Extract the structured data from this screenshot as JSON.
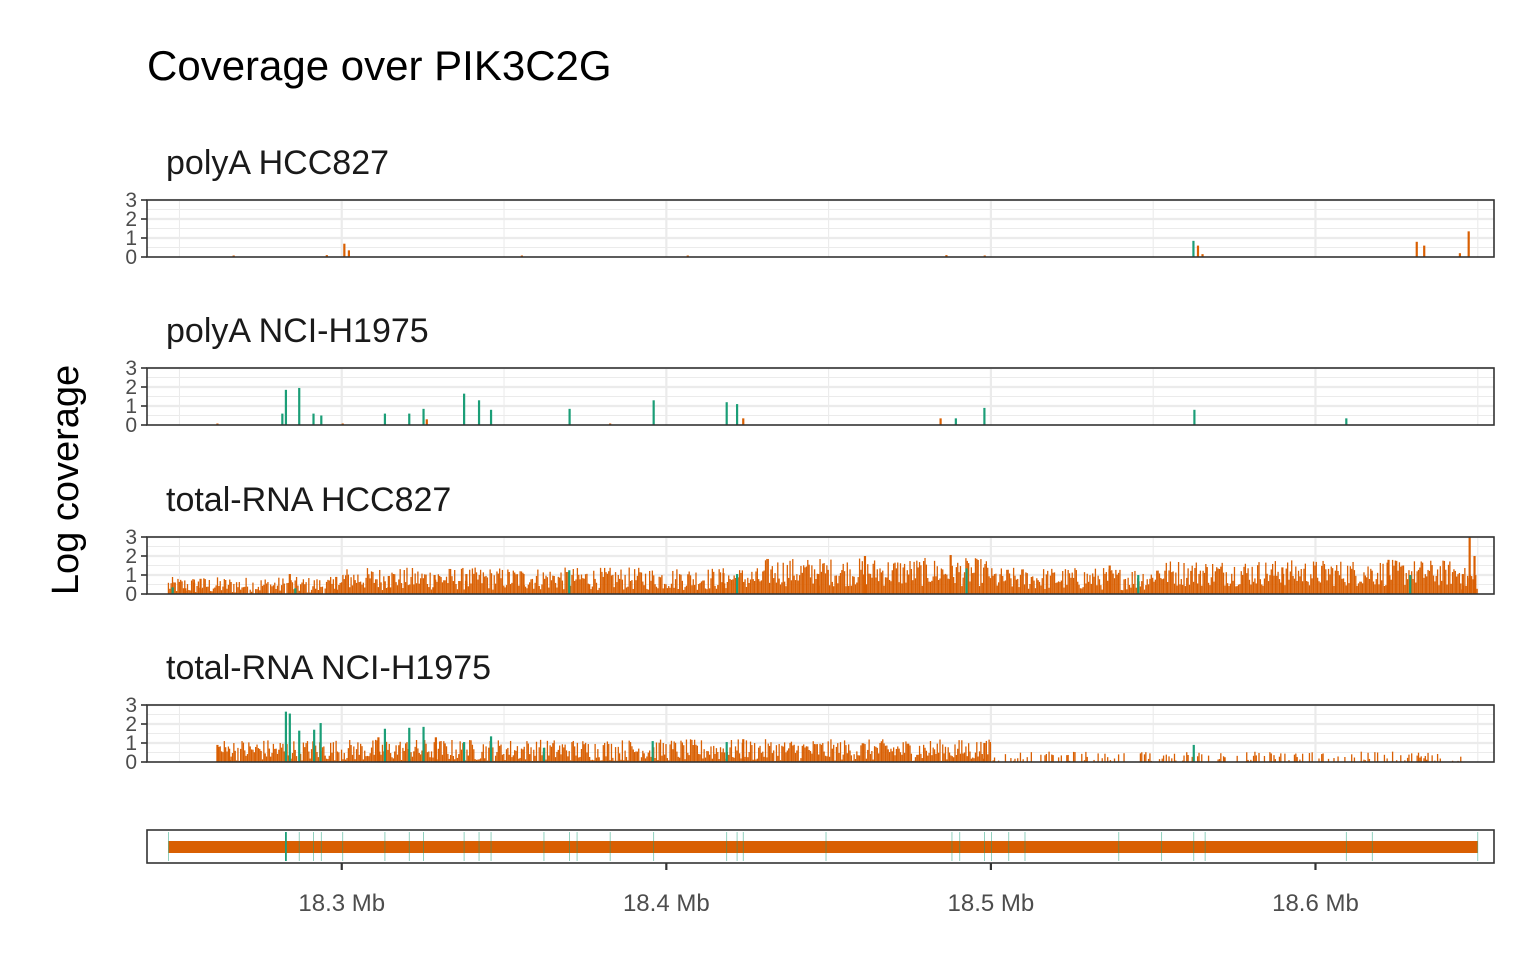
{
  "colors": {
    "exon": "#1b9e77",
    "intron": "#d95f02",
    "grid": "#ebebeb",
    "border": "#333333"
  },
  "chart_data": {
    "type": "bar",
    "title": "Coverage over PIK3C2G",
    "ylabel": "Log coverage",
    "xlabel": "",
    "xlim": [
      18.24,
      18.655
    ],
    "x_unit": "Mb",
    "x_ticks": [
      {
        "value": 18.3,
        "label": "18.3 Mb"
      },
      {
        "value": 18.4,
        "label": "18.4 Mb"
      },
      {
        "value": 18.5,
        "label": "18.5 Mb"
      },
      {
        "value": 18.6,
        "label": "18.6 Mb"
      }
    ],
    "ylim": [
      0,
      3
    ],
    "y_ticks": [
      "0",
      "1",
      "2",
      "3"
    ],
    "grid": true,
    "legend": "none",
    "panels": [
      {
        "label": "polyA HCC827",
        "bars": [
          [
            18.2667,
            0.08,
            "intron"
          ],
          [
            18.2954,
            0.1,
            "intron"
          ],
          [
            18.3008,
            0.7,
            "intron"
          ],
          [
            18.3022,
            0.35,
            "intron"
          ],
          [
            18.3555,
            0.08,
            "intron"
          ],
          [
            18.4066,
            0.08,
            "intron"
          ],
          [
            18.4863,
            0.1,
            "intron"
          ],
          [
            18.4981,
            0.08,
            "intron"
          ],
          [
            18.5624,
            0.85,
            "exon"
          ],
          [
            18.5638,
            0.6,
            "intron"
          ],
          [
            18.5652,
            0.15,
            "intron"
          ],
          [
            18.6312,
            0.8,
            "intron"
          ],
          [
            18.6335,
            0.6,
            "intron"
          ],
          [
            18.6445,
            0.2,
            "intron"
          ],
          [
            18.6472,
            1.35,
            "intron"
          ]
        ]
      },
      {
        "label": "polyA NCI-H1975",
        "bars": [
          [
            18.2617,
            0.08,
            "intron"
          ],
          [
            18.2817,
            0.6,
            "exon"
          ],
          [
            18.2828,
            1.85,
            "exon"
          ],
          [
            18.2869,
            1.95,
            "exon"
          ],
          [
            18.2913,
            0.6,
            "exon"
          ],
          [
            18.2937,
            0.5,
            "exon"
          ],
          [
            18.3003,
            0.08,
            "intron"
          ],
          [
            18.3133,
            0.6,
            "exon"
          ],
          [
            18.3208,
            0.6,
            "exon"
          ],
          [
            18.3252,
            0.85,
            "exon"
          ],
          [
            18.3262,
            0.3,
            "intron"
          ],
          [
            18.3377,
            1.65,
            "exon"
          ],
          [
            18.3423,
            1.3,
            "exon"
          ],
          [
            18.346,
            0.8,
            "exon"
          ],
          [
            18.3702,
            0.85,
            "exon"
          ],
          [
            18.3827,
            0.08,
            "intron"
          ],
          [
            18.3961,
            1.3,
            "exon"
          ],
          [
            18.4186,
            1.2,
            "exon"
          ],
          [
            18.4218,
            1.1,
            "exon"
          ],
          [
            18.4237,
            0.35,
            "intron"
          ],
          [
            18.4845,
            0.35,
            "intron"
          ],
          [
            18.4892,
            0.35,
            "exon"
          ],
          [
            18.498,
            0.9,
            "exon"
          ],
          [
            18.5627,
            0.8,
            "exon"
          ],
          [
            18.6095,
            0.35,
            "exon"
          ]
        ]
      },
      {
        "label": "total-RNA HCC827",
        "bars": [
          [
            18.2479,
            0.35,
            "exon"
          ],
          [
            18.2518,
            0.3,
            "intron"
          ],
          [
            18.2545,
            0.6,
            "intron"
          ],
          [
            18.2565,
            0.8,
            "intron"
          ],
          [
            18.284,
            1.05,
            "intron"
          ],
          [
            18.2857,
            0.3,
            "exon"
          ],
          [
            18.2983,
            0.9,
            "intron"
          ],
          [
            18.3145,
            0.95,
            "intron"
          ],
          [
            18.3286,
            1.0,
            "intron"
          ],
          [
            18.3384,
            1.05,
            "intron"
          ],
          [
            18.356,
            1.05,
            "intron"
          ],
          [
            18.3701,
            1.25,
            "exon"
          ],
          [
            18.4176,
            1.1,
            "intron"
          ],
          [
            18.4218,
            1.05,
            "exon"
          ],
          [
            18.4468,
            1.05,
            "intron"
          ],
          [
            18.4612,
            2.0,
            "intron"
          ],
          [
            18.4876,
            2.05,
            "intron"
          ],
          [
            18.4925,
            1.35,
            "exon"
          ],
          [
            18.5366,
            1.5,
            "intron"
          ],
          [
            18.5454,
            1.0,
            "exon"
          ],
          [
            18.5898,
            1.4,
            "intron"
          ],
          [
            18.6225,
            1.8,
            "intron"
          ],
          [
            18.6292,
            1.0,
            "exon"
          ],
          [
            18.6454,
            1.05,
            "intron"
          ],
          [
            18.6475,
            3.0,
            "intron"
          ],
          [
            18.649,
            2.0,
            "intron"
          ]
        ],
        "background_pattern": "dense intronic coverage 0.3–1.6 across the whole gene, higher (1.0–1.9) between 18.43–18.50 Mb and 18.55–18.64 Mb"
      },
      {
        "label": "total-RNA NCI-H1975",
        "bars": [
          [
            18.2617,
            0.9,
            "intron"
          ],
          [
            18.2653,
            0.7,
            "intron"
          ],
          [
            18.2828,
            2.65,
            "exon"
          ],
          [
            18.284,
            2.55,
            "exon"
          ],
          [
            18.2869,
            1.65,
            "exon"
          ],
          [
            18.2915,
            1.7,
            "exon"
          ],
          [
            18.2935,
            2.05,
            "exon"
          ],
          [
            18.3113,
            1.3,
            "intron"
          ],
          [
            18.3133,
            1.75,
            "exon"
          ],
          [
            18.3208,
            1.8,
            "exon"
          ],
          [
            18.3252,
            1.85,
            "exon"
          ],
          [
            18.329,
            1.3,
            "intron"
          ],
          [
            18.3377,
            1.05,
            "exon"
          ],
          [
            18.346,
            1.35,
            "exon"
          ],
          [
            18.3623,
            0.75,
            "exon"
          ],
          [
            18.3958,
            1.1,
            "exon"
          ],
          [
            18.4186,
            1.05,
            "exon"
          ],
          [
            18.4237,
            1.2,
            "intron"
          ],
          [
            18.498,
            1.0,
            "intron"
          ],
          [
            18.5625,
            0.9,
            "exon"
          ],
          [
            18.572,
            0.25,
            "intron"
          ]
        ],
        "background_pattern": "intronic coverage 0.2–1.3 from 18.26 to 18.50 Mb, sparse 0.1–0.6 after 18.50 Mb"
      }
    ],
    "gene_track": {
      "start": 18.2466,
      "end": 18.65,
      "exons": [
        18.2466,
        18.2828,
        18.2869,
        18.2913,
        18.2937,
        18.3003,
        18.3133,
        18.3208,
        18.3252,
        18.3377,
        18.3423,
        18.346,
        18.3623,
        18.3702,
        18.3725,
        18.3827,
        18.3961,
        18.4186,
        18.4218,
        18.4237,
        18.4492,
        18.488,
        18.4904,
        18.498,
        18.5002,
        18.5055,
        18.5105,
        18.5394,
        18.5526,
        18.5625,
        18.566,
        18.6095,
        18.6175,
        18.65
      ]
    }
  }
}
